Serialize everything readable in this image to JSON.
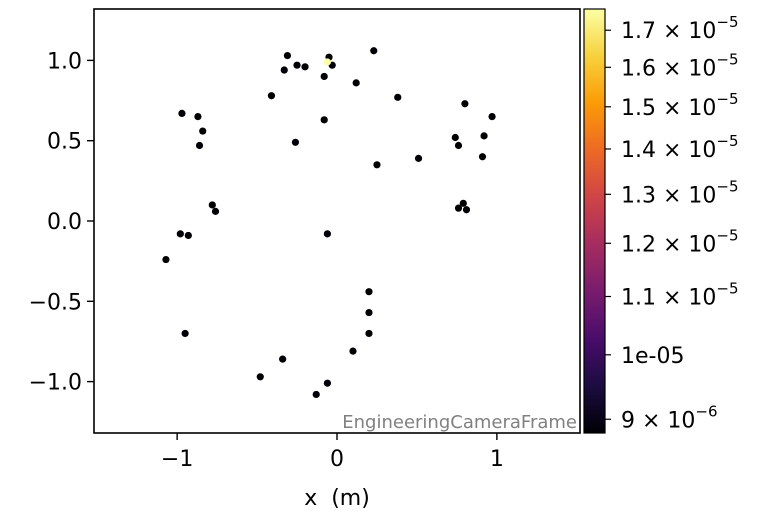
{
  "chart_data": {
    "type": "scatter",
    "title": "",
    "xlabel": "x  (m)",
    "ylabel": "",
    "xlim": [
      -1.52,
      1.52
    ],
    "ylim": [
      -1.32,
      1.32
    ],
    "x_ticks": [
      -1,
      0,
      1
    ],
    "x_tick_labels": [
      "−1",
      "0",
      "1"
    ],
    "y_ticks": [
      1.0,
      0.5,
      0.0,
      -0.5,
      -1.0
    ],
    "y_tick_labels": [
      "1.0",
      "0.5",
      "0.0",
      "−0.5",
      "−1.0"
    ],
    "grid": false,
    "annotation": "EngineeringCameraFrame",
    "points": [
      {
        "x": -0.31,
        "y": 1.03
      },
      {
        "x": -0.25,
        "y": 0.97
      },
      {
        "x": -0.2,
        "y": 0.96
      },
      {
        "x": -0.33,
        "y": 0.94
      },
      {
        "x": -0.05,
        "y": 1.02
      },
      {
        "x": -0.03,
        "y": 0.97
      },
      {
        "x": -0.08,
        "y": 0.9
      },
      {
        "x": 0.23,
        "y": 1.06
      },
      {
        "x": 0.12,
        "y": 0.86
      },
      {
        "x": -0.41,
        "y": 0.78
      },
      {
        "x": 0.38,
        "y": 0.77
      },
      {
        "x": -0.08,
        "y": 0.63
      },
      {
        "x": -0.97,
        "y": 0.67
      },
      {
        "x": -0.87,
        "y": 0.65
      },
      {
        "x": -0.84,
        "y": 0.56
      },
      {
        "x": -0.86,
        "y": 0.47
      },
      {
        "x": -0.26,
        "y": 0.49
      },
      {
        "x": 0.8,
        "y": 0.73
      },
      {
        "x": 0.97,
        "y": 0.65
      },
      {
        "x": 0.74,
        "y": 0.52
      },
      {
        "x": 0.76,
        "y": 0.47
      },
      {
        "x": 0.92,
        "y": 0.53
      },
      {
        "x": 0.91,
        "y": 0.4
      },
      {
        "x": 0.51,
        "y": 0.39
      },
      {
        "x": 0.25,
        "y": 0.35
      },
      {
        "x": -0.78,
        "y": 0.1
      },
      {
        "x": -0.76,
        "y": 0.06
      },
      {
        "x": 0.76,
        "y": 0.08
      },
      {
        "x": 0.79,
        "y": 0.11
      },
      {
        "x": 0.81,
        "y": 0.07
      },
      {
        "x": -0.98,
        "y": -0.08
      },
      {
        "x": -0.93,
        "y": -0.09
      },
      {
        "x": -0.06,
        "y": -0.08
      },
      {
        "x": -1.07,
        "y": -0.24
      },
      {
        "x": 0.2,
        "y": -0.44
      },
      {
        "x": 0.2,
        "y": -0.57
      },
      {
        "x": 0.2,
        "y": -0.7
      },
      {
        "x": -0.95,
        "y": -0.7
      },
      {
        "x": 0.1,
        "y": -0.81
      },
      {
        "x": -0.34,
        "y": -0.86
      },
      {
        "x": -0.48,
        "y": -0.97
      },
      {
        "x": -0.06,
        "y": -1.01
      },
      {
        "x": -0.13,
        "y": -1.08
      }
    ],
    "highlight_point": {
      "x": -0.06,
      "y": 0.99,
      "color": "#fcffa4"
    },
    "point_color": "#000004",
    "colorbar": {
      "colormap": "inferno",
      "scale": "log",
      "range": [
        8.8e-06,
        1.76e-05
      ],
      "colors": [
        "#000004",
        "#1b0c41",
        "#4a0c6b",
        "#781c6d",
        "#a52c60",
        "#cf4446",
        "#ed6925",
        "#fb9b06",
        "#f7d13d",
        "#fcffa4"
      ],
      "ticks": [
        {
          "value": 1.7e-05,
          "label_mantissa": "1.7",
          "label_exponent": "−5"
        },
        {
          "value": 1.6e-05,
          "label_mantissa": "1.6",
          "label_exponent": "−5"
        },
        {
          "value": 1.5e-05,
          "label_mantissa": "1.5",
          "label_exponent": "−5"
        },
        {
          "value": 1.4e-05,
          "label_mantissa": "1.4",
          "label_exponent": "−5"
        },
        {
          "value": 1.3e-05,
          "label_mantissa": "1.3",
          "label_exponent": "−5"
        },
        {
          "value": 1.2e-05,
          "label_mantissa": "1.2",
          "label_exponent": "−5"
        },
        {
          "value": 1.1e-05,
          "label_mantissa": "1.1",
          "label_exponent": "−5"
        },
        {
          "value": 1e-05,
          "label_plain": "1e-05"
        },
        {
          "value": 9e-06,
          "label_mantissa": "9",
          "label_exponent": "−6"
        }
      ]
    }
  }
}
